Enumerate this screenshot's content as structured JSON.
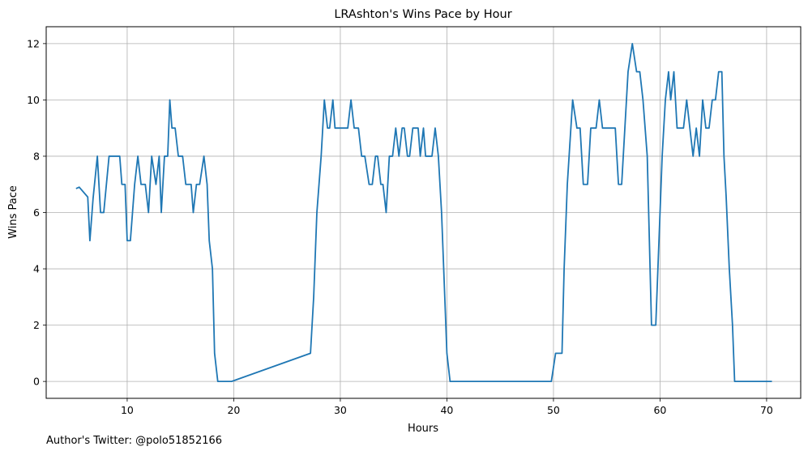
{
  "footer_text": "Author's Twitter: @polo51852166",
  "chart_data": {
    "type": "line",
    "title": "LRAshton's Wins Pace by Hour",
    "xlabel": "Hours",
    "ylabel": "Wins Pace",
    "xlim": [
      2.4,
      73.2
    ],
    "ylim": [
      -0.6,
      12.6
    ],
    "xticks": [
      10,
      20,
      30,
      40,
      50,
      60,
      70
    ],
    "yticks": [
      0,
      2,
      4,
      6,
      8,
      10,
      12
    ],
    "grid": true,
    "line_color": "#1f77b4",
    "series": [
      {
        "x": [
          5.2,
          5.5,
          6.3,
          6.5,
          6.8,
          7.2,
          7.5,
          7.8,
          8.3,
          8.7,
          9.0,
          9.3,
          9.5,
          9.8,
          10.0,
          10.3,
          10.7,
          11.0,
          11.3,
          11.7,
          12.0,
          12.3,
          12.7,
          13.0,
          13.2,
          13.5,
          13.8,
          14.0,
          14.2,
          14.5,
          14.8,
          15.2,
          15.5,
          15.8,
          16.0,
          16.2,
          16.5,
          16.8,
          17.2,
          17.5,
          17.7,
          18.0,
          18.2,
          18.5,
          18.8,
          19.2,
          19.5,
          19.8,
          27.2,
          27.5,
          27.8,
          28.2,
          28.5,
          28.8,
          29.0,
          29.3,
          29.5,
          29.8,
          30.0,
          30.3,
          30.7,
          31.0,
          31.3,
          31.7,
          32.0,
          32.3,
          32.7,
          33.0,
          33.3,
          33.5,
          33.8,
          34.0,
          34.3,
          34.6,
          34.9,
          35.2,
          35.5,
          35.8,
          36.0,
          36.3,
          36.5,
          36.8,
          37.0,
          37.3,
          37.5,
          37.8,
          38.0,
          38.3,
          38.6,
          38.9,
          39.2,
          39.5,
          39.8,
          40.0,
          40.3,
          40.7,
          41.0,
          41.3,
          49.8,
          50.2,
          50.5,
          50.8,
          51.0,
          51.3,
          51.8,
          52.2,
          52.5,
          52.8,
          53.2,
          53.5,
          54.0,
          54.3,
          54.6,
          54.9,
          55.2,
          55.5,
          55.8,
          56.1,
          56.4,
          56.7,
          57.0,
          57.4,
          57.8,
          58.1,
          58.4,
          58.8,
          59.2,
          59.6,
          59.9,
          60.2,
          60.5,
          60.8,
          61.0,
          61.3,
          61.6,
          61.9,
          62.2,
          62.5,
          62.8,
          63.1,
          63.4,
          63.7,
          64.0,
          64.3,
          64.6,
          64.9,
          65.2,
          65.5,
          65.8,
          66.0,
          66.2,
          66.5,
          66.8,
          67.0,
          67.3,
          67.6,
          68.0,
          70.5
        ],
        "y": [
          6.85,
          6.9,
          6.55,
          5.0,
          6.5,
          8.0,
          6.0,
          6.0,
          8.0,
          8.0,
          8.0,
          8.0,
          7.0,
          7.0,
          5.0,
          5.0,
          7.0,
          8.0,
          7.0,
          7.0,
          6.0,
          8.0,
          7.0,
          8.0,
          6.0,
          8.0,
          8.0,
          10.0,
          9.0,
          9.0,
          8.0,
          8.0,
          7.0,
          7.0,
          7.0,
          6.0,
          7.0,
          7.0,
          8.0,
          7.0,
          5.0,
          4.0,
          1.0,
          0.0,
          0.0,
          0.0,
          0.0,
          0.0,
          1.0,
          3.0,
          6.0,
          8.0,
          10.0,
          9.0,
          9.0,
          10.0,
          9.0,
          9.0,
          9.0,
          9.0,
          9.0,
          10.0,
          9.0,
          9.0,
          8.0,
          8.0,
          7.0,
          7.0,
          8.0,
          8.0,
          7.0,
          7.0,
          6.0,
          8.0,
          8.0,
          9.0,
          8.0,
          9.0,
          9.0,
          8.0,
          8.0,
          9.0,
          9.0,
          9.0,
          8.0,
          9.0,
          8.0,
          8.0,
          8.0,
          9.0,
          8.0,
          6.0,
          3.0,
          1.0,
          0.0,
          0.0,
          0.0,
          0.0,
          0.0,
          1.0,
          1.0,
          1.0,
          4.0,
          7.0,
          10.0,
          9.0,
          9.0,
          7.0,
          7.0,
          9.0,
          9.0,
          10.0,
          9.0,
          9.0,
          9.0,
          9.0,
          9.0,
          7.0,
          7.0,
          9.0,
          11.0,
          12.0,
          11.0,
          11.0,
          10.0,
          8.0,
          2.0,
          2.0,
          5.0,
          8.0,
          10.0,
          11.0,
          10.0,
          11.0,
          9.0,
          9.0,
          9.0,
          10.0,
          9.0,
          8.0,
          9.0,
          8.0,
          10.0,
          9.0,
          9.0,
          10.0,
          10.0,
          11.0,
          11.0,
          8.0,
          6.6,
          4.0,
          2.0,
          0.0,
          0.0,
          0.0,
          0.0,
          0.0
        ]
      }
    ]
  }
}
